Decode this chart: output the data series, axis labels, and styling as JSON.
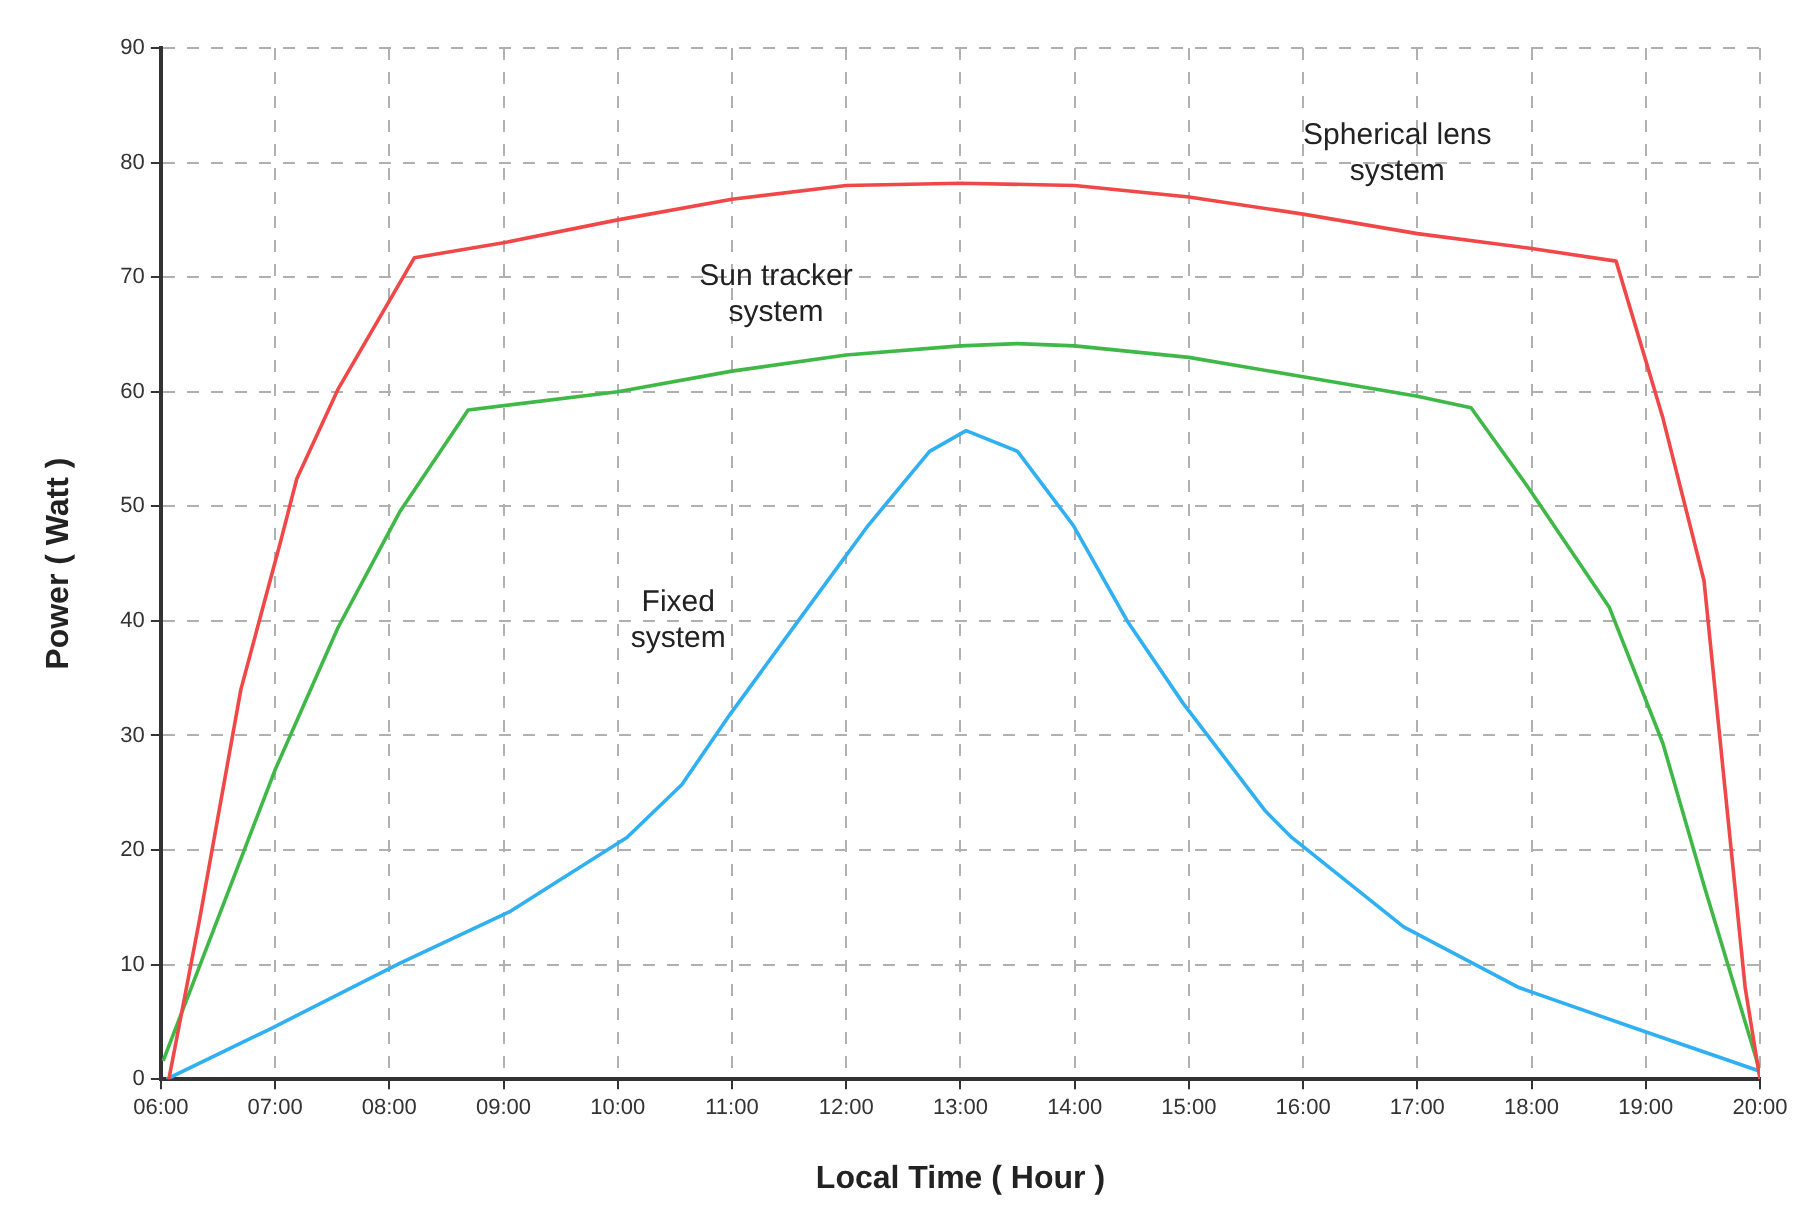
{
  "chart_data": {
    "type": "line",
    "xlabel": "Local Time ( Hour )",
    "ylabel": "Power ( Watt )",
    "xlim": [
      6,
      20
    ],
    "xticks": [
      {
        "value": 6,
        "label": "06:00"
      },
      {
        "value": 7,
        "label": "07:00"
      },
      {
        "value": 8,
        "label": "08:00"
      },
      {
        "value": 9,
        "label": "09:00"
      },
      {
        "value": 10,
        "label": "10:00"
      },
      {
        "value": 11,
        "label": "11:00"
      },
      {
        "value": 12,
        "label": "12:00"
      },
      {
        "value": 13,
        "label": "13:00"
      },
      {
        "value": 14,
        "label": "14:00"
      },
      {
        "value": 15,
        "label": "15:00"
      },
      {
        "value": 16,
        "label": "16:00"
      },
      {
        "value": 17,
        "label": "17:00"
      },
      {
        "value": 18,
        "label": "18:00"
      },
      {
        "value": 19,
        "label": "19:00"
      },
      {
        "value": 20,
        "label": "20:00"
      }
    ],
    "ylim": [
      0,
      90
    ],
    "yticks": [
      0,
      10,
      20,
      30,
      40,
      50,
      60,
      70,
      80,
      90
    ],
    "grid": true,
    "legend": false,
    "marker": "none",
    "line_style": "solid",
    "series": [
      {
        "name": "Spherical lens\nsystem",
        "color": "#f04848",
        "x": [
          6.07,
          6.34,
          6.7,
          7.05,
          7.19,
          7.55,
          8.22,
          9,
          10,
          11,
          12,
          13,
          14,
          15,
          16,
          17,
          18,
          18.74,
          19.15,
          19.51,
          19.69,
          19.87,
          20
        ],
        "values": [
          0,
          14,
          34,
          47,
          52.4,
          60.2,
          71.7,
          73,
          75,
          76.8,
          78,
          78.2,
          78,
          77,
          75.5,
          73.8,
          72.5,
          71.4,
          57.7,
          43.5,
          25.7,
          8,
          0
        ]
      },
      {
        "name": "Sun tracker\nsystem",
        "color": "#40b848",
        "x": [
          6.02,
          7,
          7.55,
          8.09,
          8.69,
          10,
          11,
          12,
          13,
          13.5,
          14,
          15,
          16,
          17,
          17.47,
          17.96,
          18.68,
          19.15,
          19.51,
          20
        ],
        "values": [
          1.6,
          27,
          39.4,
          49.5,
          58.4,
          60,
          61.8,
          63.2,
          64,
          64.2,
          64,
          63,
          61.3,
          59.6,
          58.6,
          51.8,
          41.2,
          29.3,
          16.9,
          0.7
        ]
      },
      {
        "name": "Fixed\nsystem",
        "color": "#30b0f0",
        "x": [
          6.05,
          6.96,
          8.09,
          9.05,
          10.08,
          10.56,
          10.98,
          11.58,
          12.19,
          12.73,
          13.05,
          13.5,
          13.99,
          14.46,
          14.95,
          15.67,
          15.9,
          16.88,
          17.89,
          18.92,
          20
        ],
        "values": [
          0,
          4.4,
          10.1,
          14.6,
          21.1,
          25.7,
          31.8,
          40,
          48.3,
          54.8,
          56.6,
          54.8,
          48.3,
          40,
          32.8,
          23.4,
          21.1,
          13.3,
          8,
          4.4,
          0.7
        ]
      }
    ]
  }
}
